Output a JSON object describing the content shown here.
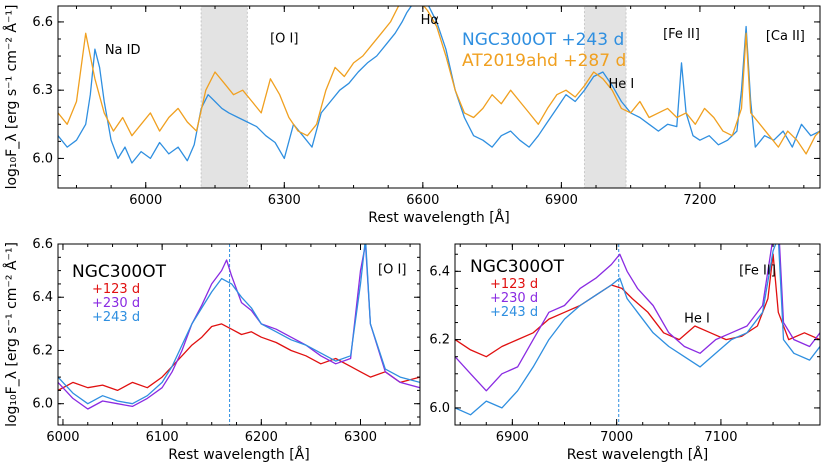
{
  "figure": {
    "background": "#ffffff"
  },
  "chart_data": [
    {
      "type": "line",
      "panel": "top",
      "xlabel": "Rest wavelength [Å]",
      "ylabel": "log₁₀F_λ [erg s⁻¹ cm⁻² Å⁻¹]",
      "xlim": [
        5810,
        7460
      ],
      "ylim": [
        5.87,
        6.67
      ],
      "xticks": [
        6000,
        6300,
        6600,
        6900,
        7200
      ],
      "yticks": [
        6.0,
        6.3,
        6.6
      ],
      "xtick_labels": [
        "6000",
        "6300",
        "6600",
        "6900",
        "7200"
      ],
      "ytick_labels": [
        "6.0",
        "6.3",
        "6.6"
      ],
      "shaded_regions": [
        [
          6120,
          6220
        ],
        [
          6950,
          7040
        ]
      ],
      "shade_color": "#e3e3e3",
      "annotations": [
        {
          "text": "Na ID",
          "x": 5950,
          "y": 6.46
        },
        {
          "text": "[O I]",
          "x": 6300,
          "y": 6.51
        },
        {
          "text": "Hα",
          "x": 6615,
          "y": 6.59
        },
        {
          "text": "[Fe II]",
          "x": 7160,
          "y": 6.53
        },
        {
          "text": "[Ca II]",
          "x": 7385,
          "y": 6.52
        },
        {
          "text": "He I",
          "x": 7030,
          "y": 6.31
        }
      ],
      "series": [
        {
          "name": "NGC300OT +243 d",
          "color": "#2f8fe0",
          "x": [
            5810,
            5830,
            5850,
            5870,
            5880,
            5890,
            5900,
            5910,
            5925,
            5940,
            5955,
            5970,
            5990,
            6010,
            6030,
            6050,
            6070,
            6090,
            6105,
            6120,
            6135,
            6150,
            6165,
            6180,
            6200,
            6220,
            6240,
            6260,
            6280,
            6300,
            6320,
            6340,
            6360,
            6380,
            6400,
            6420,
            6440,
            6460,
            6480,
            6500,
            6520,
            6540,
            6555,
            6565,
            6575,
            6590,
            6610,
            6630,
            6650,
            6670,
            6690,
            6710,
            6730,
            6750,
            6770,
            6790,
            6810,
            6830,
            6850,
            6870,
            6890,
            6910,
            6930,
            6950,
            6970,
            6990,
            7010,
            7030,
            7050,
            7070,
            7090,
            7110,
            7130,
            7150,
            7160,
            7170,
            7185,
            7200,
            7220,
            7240,
            7260,
            7280,
            7290,
            7300,
            7310,
            7320,
            7340,
            7360,
            7380,
            7400,
            7420,
            7440,
            7460
          ],
          "y": [
            6.1,
            6.05,
            6.08,
            6.15,
            6.28,
            6.48,
            6.4,
            6.25,
            6.08,
            6.0,
            6.05,
            5.98,
            6.03,
            6.0,
            6.07,
            6.02,
            6.05,
            5.99,
            6.06,
            6.22,
            6.28,
            6.25,
            6.22,
            6.2,
            6.18,
            6.16,
            6.14,
            6.1,
            6.07,
            6.0,
            6.15,
            6.1,
            6.05,
            6.2,
            6.25,
            6.3,
            6.33,
            6.38,
            6.42,
            6.45,
            6.5,
            6.55,
            6.6,
            6.64,
            6.67,
            6.7,
            6.68,
            6.6,
            6.48,
            6.3,
            6.18,
            6.1,
            6.08,
            6.05,
            6.1,
            6.12,
            6.08,
            6.05,
            6.1,
            6.16,
            6.22,
            6.28,
            6.25,
            6.3,
            6.36,
            6.38,
            6.32,
            6.25,
            6.2,
            6.18,
            6.15,
            6.12,
            6.15,
            6.14,
            6.42,
            6.2,
            6.1,
            6.08,
            6.1,
            6.06,
            6.08,
            6.12,
            6.3,
            6.58,
            6.25,
            6.05,
            6.1,
            6.08,
            6.12,
            6.05,
            6.15,
            6.1,
            6.12
          ]
        },
        {
          "name": "AT2019ahd +287 d",
          "color": "#f0a020",
          "x": [
            5810,
            5830,
            5850,
            5870,
            5890,
            5910,
            5930,
            5950,
            5970,
            5990,
            6010,
            6030,
            6050,
            6070,
            6090,
            6110,
            6130,
            6150,
            6170,
            6190,
            6210,
            6230,
            6250,
            6270,
            6290,
            6310,
            6330,
            6350,
            6370,
            6390,
            6410,
            6430,
            6450,
            6470,
            6490,
            6510,
            6530,
            6550,
            6570,
            6590,
            6610,
            6630,
            6650,
            6670,
            6690,
            6710,
            6730,
            6750,
            6770,
            6790,
            6810,
            6830,
            6850,
            6870,
            6890,
            6910,
            6930,
            6950,
            6970,
            6990,
            7010,
            7030,
            7050,
            7070,
            7090,
            7110,
            7130,
            7150,
            7170,
            7190,
            7210,
            7230,
            7250,
            7270,
            7290,
            7300,
            7310,
            7330,
            7350,
            7370,
            7390,
            7410,
            7430,
            7450,
            7460
          ],
          "y": [
            6.2,
            6.15,
            6.25,
            6.55,
            6.35,
            6.2,
            6.12,
            6.18,
            6.1,
            6.15,
            6.2,
            6.12,
            6.18,
            6.22,
            6.16,
            6.12,
            6.3,
            6.38,
            6.33,
            6.28,
            6.3,
            6.25,
            6.2,
            6.35,
            6.28,
            6.18,
            6.12,
            6.1,
            6.15,
            6.3,
            6.4,
            6.36,
            6.42,
            6.45,
            6.5,
            6.55,
            6.6,
            6.68,
            6.72,
            6.7,
            6.65,
            6.58,
            6.45,
            6.3,
            6.2,
            6.18,
            6.22,
            6.28,
            6.24,
            6.3,
            6.25,
            6.2,
            6.15,
            6.22,
            6.28,
            6.3,
            6.27,
            6.32,
            6.38,
            6.35,
            6.3,
            6.22,
            6.2,
            6.25,
            6.18,
            6.2,
            6.22,
            6.18,
            6.2,
            6.15,
            6.22,
            6.18,
            6.12,
            6.1,
            6.22,
            6.55,
            6.2,
            6.15,
            6.1,
            6.05,
            6.12,
            6.08,
            6.02,
            6.1,
            6.12
          ]
        }
      ]
    },
    {
      "type": "line",
      "panel": "bottom-left",
      "title": "NGC300OT",
      "xlabel": "Rest wavelength [Å]",
      "ylabel": "log₁₀F_λ [erg s⁻¹ cm⁻² Å⁻¹]",
      "xlim": [
        5995,
        6360
      ],
      "ylim": [
        5.92,
        6.6
      ],
      "xticks": [
        6000,
        6100,
        6200,
        6300
      ],
      "yticks": [
        6.0,
        6.2,
        6.4,
        6.6
      ],
      "xtick_labels": [
        "6000",
        "6100",
        "6200",
        "6300"
      ],
      "ytick_labels": [
        "6.0",
        "6.2",
        "6.4",
        "6.6"
      ],
      "vline": 6168,
      "annotations": [
        {
          "text": "[O I]",
          "x": 6332,
          "y": 6.49
        }
      ],
      "series": [
        {
          "name": "+123 d",
          "color": "#e01010",
          "x": [
            5995,
            6010,
            6025,
            6040,
            6055,
            6070,
            6085,
            6100,
            6110,
            6120,
            6130,
            6140,
            6150,
            6160,
            6170,
            6180,
            6190,
            6200,
            6215,
            6230,
            6245,
            6260,
            6275,
            6290,
            6300,
            6310,
            6325,
            6340,
            6360
          ],
          "y": [
            6.05,
            6.08,
            6.06,
            6.07,
            6.05,
            6.08,
            6.06,
            6.1,
            6.14,
            6.18,
            6.22,
            6.25,
            6.29,
            6.3,
            6.28,
            6.26,
            6.27,
            6.25,
            6.23,
            6.2,
            6.18,
            6.15,
            6.17,
            6.14,
            6.12,
            6.1,
            6.12,
            6.08,
            6.1
          ]
        },
        {
          "name": "+230 d",
          "color": "#8a2be2",
          "x": [
            5995,
            6010,
            6025,
            6040,
            6055,
            6070,
            6085,
            6100,
            6110,
            6120,
            6130,
            6140,
            6150,
            6160,
            6165,
            6170,
            6180,
            6190,
            6200,
            6215,
            6230,
            6245,
            6260,
            6275,
            6290,
            6300,
            6305,
            6310,
            6325,
            6340,
            6360
          ],
          "y": [
            6.08,
            6.02,
            5.98,
            6.01,
            6.0,
            5.99,
            6.02,
            6.06,
            6.12,
            6.2,
            6.3,
            6.37,
            6.45,
            6.5,
            6.54,
            6.48,
            6.38,
            6.35,
            6.3,
            6.28,
            6.25,
            6.22,
            6.18,
            6.15,
            6.17,
            6.5,
            6.6,
            6.3,
            6.12,
            6.08,
            6.06
          ]
        },
        {
          "name": "+243 d",
          "color": "#2f8fe0",
          "x": [
            5995,
            6010,
            6025,
            6040,
            6055,
            6070,
            6085,
            6100,
            6110,
            6120,
            6130,
            6140,
            6150,
            6160,
            6170,
            6180,
            6190,
            6200,
            6215,
            6230,
            6245,
            6260,
            6275,
            6290,
            6300,
            6305,
            6310,
            6325,
            6340,
            6360
          ],
          "y": [
            6.1,
            6.04,
            6.0,
            6.03,
            6.01,
            6.0,
            6.03,
            6.08,
            6.14,
            6.22,
            6.3,
            6.36,
            6.42,
            6.47,
            6.45,
            6.4,
            6.36,
            6.3,
            6.27,
            6.24,
            6.22,
            6.19,
            6.16,
            6.18,
            6.45,
            6.62,
            6.3,
            6.13,
            6.1,
            6.08
          ]
        }
      ]
    },
    {
      "type": "line",
      "panel": "bottom-right",
      "title": "NGC300OT",
      "xlabel": "Rest wavelength [Å]",
      "ylabel": "",
      "xlim": [
        6845,
        7195
      ],
      "ylim": [
        5.95,
        6.48
      ],
      "xticks": [
        6900,
        7000,
        7100
      ],
      "yticks": [
        6.0,
        6.2,
        6.4
      ],
      "xtick_labels": [
        "6900",
        "7000",
        "7100"
      ],
      "ytick_labels": [
        "6.0",
        "6.2",
        "6.4"
      ],
      "vline": 7002,
      "annotations": [
        {
          "text": "[Fe II]",
          "x": 7135,
          "y": 6.39
        },
        {
          "text": "He I",
          "x": 7077,
          "y": 6.25
        }
      ],
      "series": [
        {
          "name": "+123 d",
          "color": "#e01010",
          "x": [
            6845,
            6860,
            6875,
            6890,
            6905,
            6920,
            6935,
            6950,
            6965,
            6980,
            6995,
            7005,
            7015,
            7030,
            7045,
            7060,
            7075,
            7090,
            7105,
            7120,
            7135,
            7145,
            7150,
            7155,
            7165,
            7180,
            7195
          ],
          "y": [
            6.2,
            6.17,
            6.15,
            6.18,
            6.2,
            6.22,
            6.26,
            6.28,
            6.3,
            6.33,
            6.36,
            6.35,
            6.32,
            6.28,
            6.22,
            6.2,
            6.24,
            6.22,
            6.2,
            6.21,
            6.24,
            6.32,
            6.45,
            6.28,
            6.2,
            6.22,
            6.2
          ]
        },
        {
          "name": "+230 d",
          "color": "#8a2be2",
          "x": [
            6845,
            6860,
            6875,
            6890,
            6905,
            6920,
            6935,
            6950,
            6965,
            6980,
            6995,
            7003,
            7010,
            7020,
            7035,
            7050,
            7065,
            7080,
            7095,
            7110,
            7125,
            7140,
            7150,
            7155,
            7160,
            7170,
            7185,
            7195
          ],
          "y": [
            6.15,
            6.1,
            6.05,
            6.1,
            6.12,
            6.2,
            6.28,
            6.3,
            6.35,
            6.38,
            6.42,
            6.45,
            6.4,
            6.35,
            6.3,
            6.22,
            6.18,
            6.16,
            6.2,
            6.22,
            6.24,
            6.3,
            6.5,
            6.55,
            6.25,
            6.2,
            6.18,
            6.22
          ]
        },
        {
          "name": "+243 d",
          "color": "#2f8fe0",
          "x": [
            6845,
            6860,
            6875,
            6890,
            6905,
            6920,
            6935,
            6950,
            6965,
            6980,
            6995,
            7003,
            7010,
            7020,
            7035,
            7050,
            7065,
            7080,
            7095,
            7110,
            7125,
            7140,
            7150,
            7155,
            7160,
            7170,
            7185,
            7195
          ],
          "y": [
            6.0,
            5.98,
            6.02,
            6.0,
            6.05,
            6.12,
            6.2,
            6.26,
            6.3,
            6.33,
            6.36,
            6.38,
            6.32,
            6.28,
            6.22,
            6.18,
            6.15,
            6.12,
            6.16,
            6.2,
            6.22,
            6.28,
            6.46,
            6.5,
            6.2,
            6.16,
            6.14,
            6.18
          ]
        }
      ]
    }
  ]
}
